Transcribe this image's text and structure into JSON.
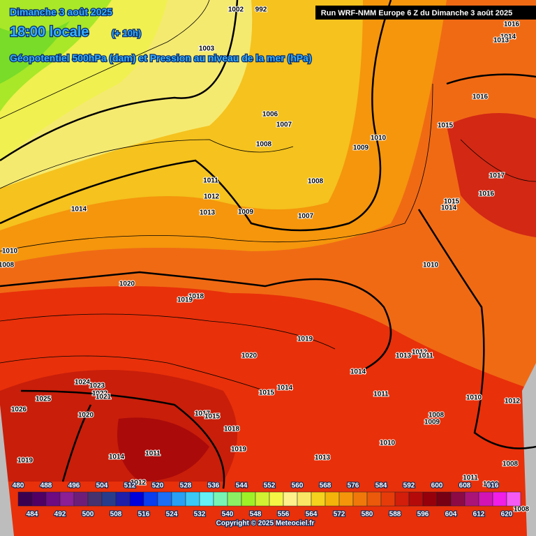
{
  "header": {
    "date": "Dimanche 3 août 2025",
    "time": "18:00 locale",
    "offset": "(+ 10h)",
    "subtitle": "Géopotentiel 500hPa (dam) et Pression au niveau de la mer (hPa)",
    "run": "Run WRF-NMM Europe 6 Z du Dimanche 3 août 2025"
  },
  "pressure_labels": [
    1002,
    992,
    1016,
    1014,
    1013,
    1003,
    1016,
    1006,
    1007,
    1015,
    1010,
    1008,
    1009,
    1017,
    1011,
    1008,
    1016,
    1012,
    1015,
    1014,
    1014,
    1013,
    1009,
    1007,
    1010,
    1010,
    1008,
    1020,
    1018,
    1019,
    1019,
    1012,
    1013,
    1011,
    1020,
    1014,
    1024,
    1023,
    1022,
    1021,
    1025,
    1015,
    1014,
    1011,
    1010,
    1012,
    1026,
    1020,
    1017,
    1015,
    1008,
    1009,
    1018,
    1019,
    1011,
    1014,
    1010,
    1013,
    1019,
    1008,
    1011,
    1016,
    1012,
    1008
  ],
  "legend": {
    "levels": [
      480,
      484,
      488,
      492,
      496,
      500,
      504,
      508,
      512,
      516,
      520,
      524,
      528,
      532,
      536,
      540,
      544,
      548,
      552,
      556,
      560,
      564,
      568,
      572,
      576,
      580,
      584,
      588,
      592,
      596,
      600,
      604,
      608,
      612,
      616,
      620
    ],
    "colors": [
      "#3c0050",
      "#500064",
      "#6e0a82",
      "#8c1e96",
      "#6e1e78",
      "#46326e",
      "#283c8c",
      "#1e1eaa",
      "#0000dc",
      "#0a3cf0",
      "#1e6ef5",
      "#28a0f5",
      "#3cc8f5",
      "#64f0f5",
      "#78f5b4",
      "#8cf064",
      "#a0f028",
      "#d2f032",
      "#f5f546",
      "#fff08c",
      "#fae664",
      "#f5d21e",
      "#f5b40a",
      "#f5960a",
      "#f0780a",
      "#eb5a0a",
      "#e63c0a",
      "#d21e0a",
      "#b40a0a",
      "#96000a",
      "#780014",
      "#8c0a46",
      "#aa1478",
      "#d214b4",
      "#f01ee6",
      "#f55af5"
    ]
  },
  "copyright": "Copyright © 2025 Meteociel.fr"
}
